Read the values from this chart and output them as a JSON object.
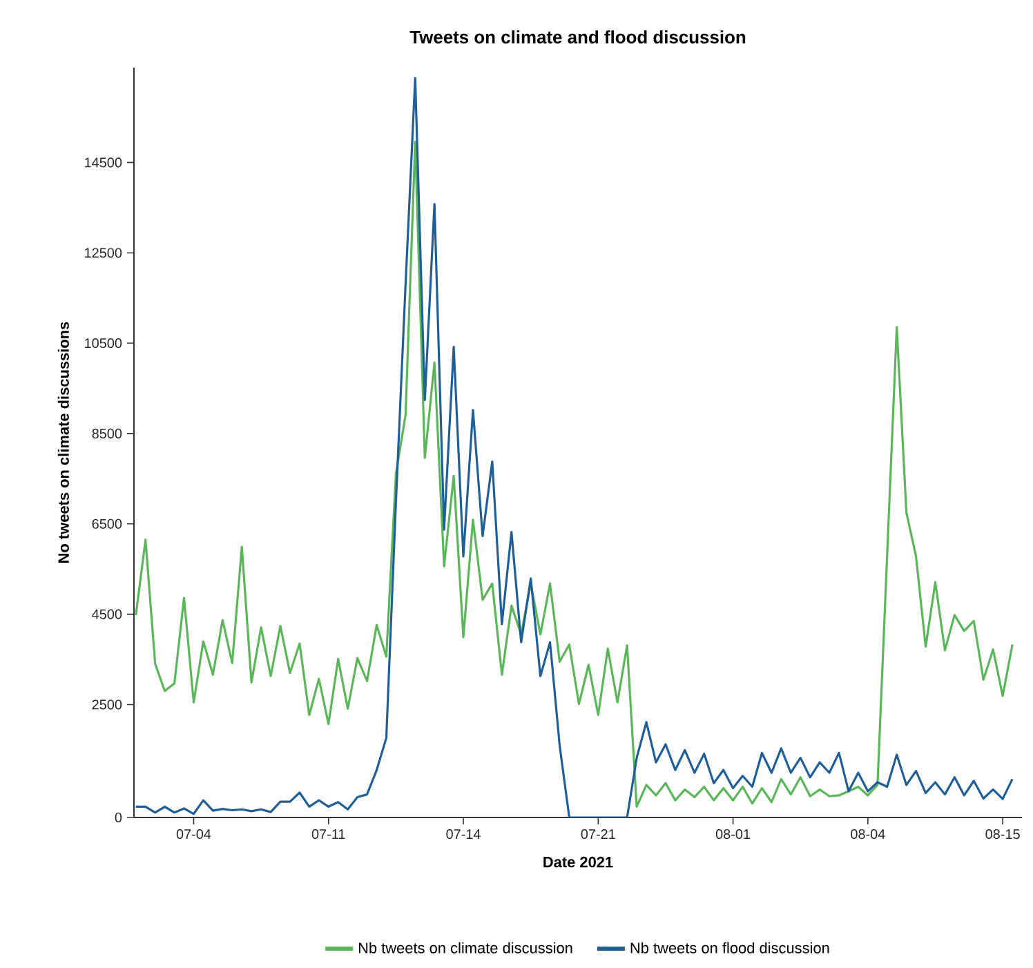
{
  "chart_data": {
    "type": "line",
    "title": "Tweets on climate and flood discussion",
    "xlabel": "Date 2021",
    "ylabel": "No tweets on climate discussions",
    "categories": [
      null,
      null,
      null,
      null,
      null,
      null,
      "07-04",
      null,
      null,
      null,
      null,
      null,
      null,
      null,
      null,
      null,
      null,
      null,
      null,
      null,
      "07-11",
      null,
      null,
      null,
      null,
      null,
      null,
      null,
      null,
      null,
      null,
      null,
      null,
      null,
      "07-14",
      null,
      null,
      null,
      null,
      null,
      null,
      null,
      null,
      null,
      null,
      null,
      null,
      null,
      "07-21",
      null,
      null,
      null,
      null,
      null,
      null,
      null,
      null,
      null,
      null,
      null,
      null,
      null,
      "08-01",
      null,
      null,
      null,
      null,
      null,
      null,
      null,
      null,
      null,
      null,
      null,
      null,
      null,
      "08-04",
      null,
      null,
      null,
      null,
      null,
      null,
      null,
      null,
      null,
      null,
      null,
      null,
      null,
      "08-15",
      null
    ],
    "series": [
      {
        "name": "Nb tweets on climate discussion",
        "color": "#5bb65a",
        "values": [
          4480,
          6150,
          3400,
          2800,
          2970,
          4860,
          2550,
          3900,
          3160,
          4370,
          3420,
          5990,
          2990,
          4210,
          3130,
          4240,
          3200,
          3850,
          2270,
          3070,
          2070,
          3510,
          2410,
          3530,
          3020,
          4260,
          3560,
          7610,
          8910,
          14960,
          7960,
          10070,
          5560,
          7560,
          3990,
          6590,
          4820,
          5180,
          3160,
          4690,
          4050,
          5180,
          4050,
          5180,
          3450,
          3830,
          2510,
          3380,
          2270,
          3740,
          2550,
          3810,
          240,
          720,
          490,
          760,
          380,
          620,
          450,
          680,
          380,
          650,
          380,
          680,
          310,
          650,
          340,
          850,
          510,
          890,
          470,
          620,
          470,
          490,
          580,
          680,
          490,
          720,
          5800,
          10860,
          6750,
          5780,
          3780,
          5210,
          3700,
          4480,
          4130,
          4350,
          3050,
          3720,
          2690,
          3830
        ]
      },
      {
        "name": "Nb tweets on flood discussion",
        "color": "#1f5f99",
        "values": [
          240,
          240,
          110,
          240,
          110,
          200,
          80,
          380,
          150,
          190,
          160,
          180,
          140,
          180,
          120,
          350,
          350,
          550,
          240,
          380,
          240,
          340,
          180,
          450,
          510,
          1050,
          1760,
          6990,
          11800,
          16370,
          9240,
          13580,
          6370,
          10420,
          5780,
          9020,
          6230,
          7880,
          4280,
          6320,
          3880,
          5290,
          3130,
          3880,
          1590,
          0,
          0,
          0,
          0,
          0,
          0,
          0,
          1320,
          2110,
          1220,
          1620,
          1050,
          1490,
          990,
          1410,
          760,
          1050,
          650,
          920,
          680,
          1430,
          990,
          1530,
          990,
          1320,
          890,
          1220,
          990,
          1430,
          580,
          990,
          580,
          780,
          680,
          1390,
          720,
          1030,
          540,
          780,
          510,
          890,
          490,
          810,
          420,
          620,
          410,
          850
        ]
      }
    ],
    "ylim": [
      0,
      16600
    ],
    "yticks": [
      0,
      2500,
      4500,
      6500,
      8500,
      10500,
      12500,
      14500
    ],
    "grid": false,
    "legend": "bottom",
    "marker": "none",
    "line_style": "solid"
  }
}
